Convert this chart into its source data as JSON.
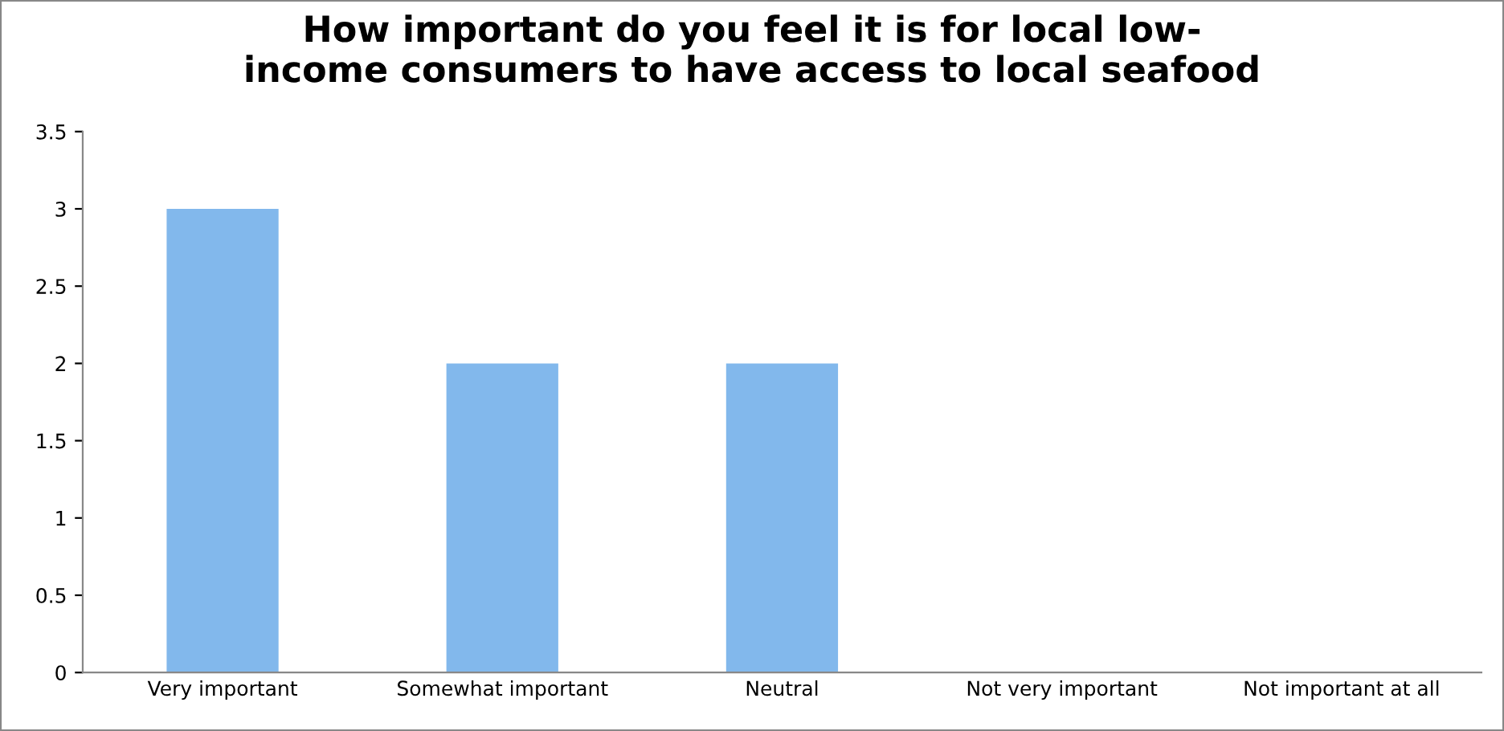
{
  "chart_data": {
    "type": "bar",
    "title": "How important do you feel it is for local low-\nincome consumers to have access to local seafood",
    "categories": [
      "Very important",
      "Somewhat important",
      "Neutral",
      "Not very important",
      "Not important at all"
    ],
    "values": [
      3,
      2,
      2,
      0,
      0
    ],
    "color": "#82b8ec",
    "ylim": [
      0,
      3.5
    ],
    "yticks": [
      0,
      0.5,
      1,
      1.5,
      2,
      2.5,
      3,
      3.5
    ],
    "grid": false,
    "legend": false
  }
}
